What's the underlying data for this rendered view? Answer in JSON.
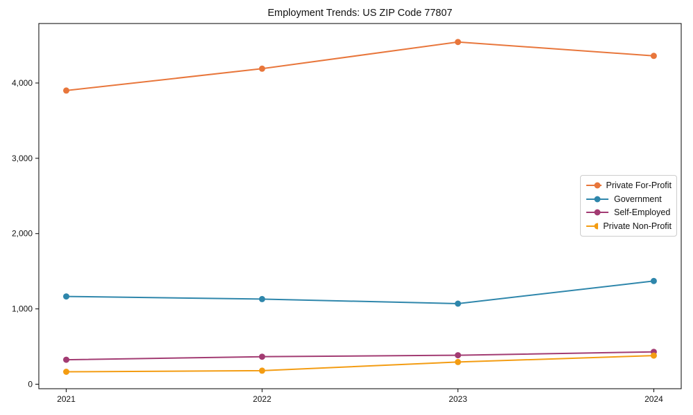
{
  "chart_data": {
    "type": "line",
    "title": "Employment Trends: US ZIP Code 77807",
    "x": [
      2021,
      2022,
      2023,
      2024
    ],
    "xtick_labels": [
      "2021",
      "2022",
      "2023",
      "2024"
    ],
    "yticks": [
      0,
      1000,
      2000,
      3000,
      4000
    ],
    "ytick_labels": [
      "0",
      "1,000",
      "2,000",
      "3,000",
      "4,000"
    ],
    "xlim": [
      2020.86,
      2024.14
    ],
    "ylim": [
      -60,
      4790
    ],
    "grid": false,
    "legend_position": "right-inside",
    "series": [
      {
        "name": "Private For-Profit",
        "color": "#E8763B",
        "values": [
          3900,
          4190,
          4545,
          4360
        ]
      },
      {
        "name": "Government",
        "color": "#2E86AB",
        "values": [
          1165,
          1130,
          1070,
          1370
        ]
      },
      {
        "name": "Self-Employed",
        "color": "#A23B72",
        "values": [
          325,
          365,
          385,
          430
        ]
      },
      {
        "name": "Private Non-Profit",
        "color": "#F39C12",
        "values": [
          165,
          180,
          295,
          380
        ]
      }
    ],
    "marker": "circle",
    "line_width": 2,
    "frame": true
  }
}
